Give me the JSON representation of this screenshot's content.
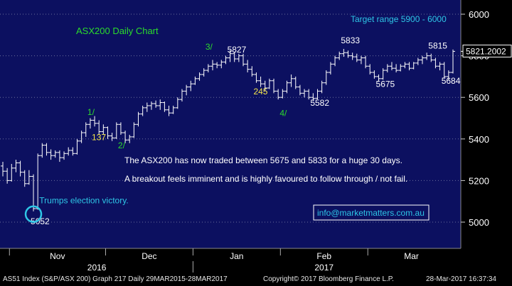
{
  "chart_data": {
    "type": "ohlc",
    "title": "ASX200 Daily Chart",
    "target_label": "Target range 5900 - 6000",
    "last_price_label": "5821.2002",
    "y_ticks": [
      5000,
      5200,
      5400,
      5600,
      5800,
      6000
    ],
    "ylim": [
      4880,
      6040
    ],
    "x_months": [
      "Nov",
      "Dec",
      "Jan",
      "Feb",
      "Mar"
    ],
    "x_years": [
      "2016",
      "2017"
    ],
    "colors": {
      "background": "#0c1060",
      "bars": "#ffffff",
      "green": "#2bdc2b",
      "yellow": "#f5e64a",
      "cyan": "#2ec6e6",
      "axis": "#000000"
    },
    "series": [
      {
        "date": "2016-10-28",
        "open": 5270,
        "high": 5290,
        "low": 5220,
        "close": 5245
      },
      {
        "date": "2016-10-31",
        "open": 5245,
        "high": 5260,
        "low": 5185,
        "close": 5200
      },
      {
        "date": "2016-11-01",
        "open": 5200,
        "high": 5280,
        "low": 5195,
        "close": 5260
      },
      {
        "date": "2016-11-02",
        "open": 5260,
        "high": 5300,
        "low": 5240,
        "close": 5285
      },
      {
        "date": "2016-11-03",
        "open": 5285,
        "high": 5295,
        "low": 5220,
        "close": 5240
      },
      {
        "date": "2016-11-04",
        "open": 5240,
        "high": 5250,
        "low": 5170,
        "close": 5185
      },
      {
        "date": "2016-11-07",
        "open": 5185,
        "high": 5250,
        "low": 5180,
        "close": 5220
      },
      {
        "date": "2016-11-08",
        "open": 5220,
        "high": 5230,
        "low": 5052,
        "close": 5065
      },
      {
        "date": "2016-11-09",
        "open": 5065,
        "high": 5330,
        "low": 5060,
        "close": 5320
      },
      {
        "date": "2016-11-10",
        "open": 5320,
        "high": 5380,
        "low": 5310,
        "close": 5370
      },
      {
        "date": "2016-11-11",
        "open": 5370,
        "high": 5380,
        "low": 5320,
        "close": 5335
      },
      {
        "date": "2016-11-14",
        "open": 5335,
        "high": 5350,
        "low": 5300,
        "close": 5320
      },
      {
        "date": "2016-11-15",
        "open": 5320,
        "high": 5345,
        "low": 5310,
        "close": 5335
      },
      {
        "date": "2016-11-16",
        "open": 5335,
        "high": 5345,
        "low": 5290,
        "close": 5310
      },
      {
        "date": "2016-11-17",
        "open": 5310,
        "high": 5340,
        "low": 5300,
        "close": 5330
      },
      {
        "date": "2016-11-18",
        "open": 5330,
        "high": 5360,
        "low": 5320,
        "close": 5345
      },
      {
        "date": "2016-11-21",
        "open": 5345,
        "high": 5360,
        "low": 5320,
        "close": 5330
      },
      {
        "date": "2016-11-22",
        "open": 5330,
        "high": 5400,
        "low": 5325,
        "close": 5390
      },
      {
        "date": "2016-11-23",
        "open": 5390,
        "high": 5440,
        "low": 5380,
        "close": 5430
      },
      {
        "date": "2016-11-24",
        "open": 5430,
        "high": 5480,
        "low": 5410,
        "close": 5470
      },
      {
        "date": "2016-11-25",
        "open": 5470,
        "high": 5500,
        "low": 5450,
        "close": 5490
      },
      {
        "date": "2016-11-28",
        "open": 5490,
        "high": 5510,
        "low": 5460,
        "close": 5475
      },
      {
        "date": "2016-11-29",
        "open": 5475,
        "high": 5490,
        "low": 5420,
        "close": 5435
      },
      {
        "date": "2016-11-30",
        "open": 5435,
        "high": 5470,
        "low": 5420,
        "close": 5455
      },
      {
        "date": "2016-12-01",
        "open": 5455,
        "high": 5460,
        "low": 5400,
        "close": 5415
      },
      {
        "date": "2016-12-02",
        "open": 5415,
        "high": 5430,
        "low": 5390,
        "close": 5405
      },
      {
        "date": "2016-12-05",
        "open": 5405,
        "high": 5480,
        "low": 5400,
        "close": 5470
      },
      {
        "date": "2016-12-06",
        "open": 5470,
        "high": 5480,
        "low": 5420,
        "close": 5430
      },
      {
        "date": "2016-12-07",
        "open": 5430,
        "high": 5440,
        "low": 5380,
        "close": 5395
      },
      {
        "date": "2016-12-08",
        "open": 5395,
        "high": 5420,
        "low": 5380,
        "close": 5410
      },
      {
        "date": "2016-12-09",
        "open": 5410,
        "high": 5480,
        "low": 5405,
        "close": 5470
      },
      {
        "date": "2016-12-12",
        "open": 5470,
        "high": 5530,
        "low": 5460,
        "close": 5520
      },
      {
        "date": "2016-12-13",
        "open": 5520,
        "high": 5560,
        "low": 5510,
        "close": 5550
      },
      {
        "date": "2016-12-14",
        "open": 5550,
        "high": 5575,
        "low": 5530,
        "close": 5560
      },
      {
        "date": "2016-12-15",
        "open": 5560,
        "high": 5580,
        "low": 5540,
        "close": 5570
      },
      {
        "date": "2016-12-16",
        "open": 5570,
        "high": 5585,
        "low": 5550,
        "close": 5560
      },
      {
        "date": "2016-12-19",
        "open": 5560,
        "high": 5590,
        "low": 5540,
        "close": 5575
      },
      {
        "date": "2016-12-20",
        "open": 5575,
        "high": 5580,
        "low": 5530,
        "close": 5540
      },
      {
        "date": "2016-12-21",
        "open": 5540,
        "high": 5560,
        "low": 5510,
        "close": 5525
      },
      {
        "date": "2016-12-22",
        "open": 5525,
        "high": 5560,
        "low": 5520,
        "close": 5550
      },
      {
        "date": "2016-12-23",
        "open": 5550,
        "high": 5600,
        "low": 5545,
        "close": 5590
      },
      {
        "date": "2016-12-28",
        "open": 5590,
        "high": 5640,
        "low": 5580,
        "close": 5630
      },
      {
        "date": "2016-12-29",
        "open": 5630,
        "high": 5660,
        "low": 5610,
        "close": 5650
      },
      {
        "date": "2016-12-30",
        "open": 5650,
        "high": 5680,
        "low": 5630,
        "close": 5665
      },
      {
        "date": "2017-01-03",
        "open": 5665,
        "high": 5700,
        "low": 5660,
        "close": 5690
      },
      {
        "date": "2017-01-04",
        "open": 5690,
        "high": 5720,
        "low": 5680,
        "close": 5710
      },
      {
        "date": "2017-01-05",
        "open": 5710,
        "high": 5740,
        "low": 5700,
        "close": 5730
      },
      {
        "date": "2017-01-06",
        "open": 5730,
        "high": 5760,
        "low": 5720,
        "close": 5750
      },
      {
        "date": "2017-01-09",
        "open": 5750,
        "high": 5780,
        "low": 5730,
        "close": 5760
      },
      {
        "date": "2017-01-10",
        "open": 5760,
        "high": 5770,
        "low": 5740,
        "close": 5755
      },
      {
        "date": "2017-01-11",
        "open": 5755,
        "high": 5780,
        "low": 5740,
        "close": 5770
      },
      {
        "date": "2017-01-12",
        "open": 5770,
        "high": 5800,
        "low": 5760,
        "close": 5790
      },
      {
        "date": "2017-01-13",
        "open": 5790,
        "high": 5827,
        "low": 5770,
        "close": 5810
      },
      {
        "date": "2017-01-16",
        "open": 5810,
        "high": 5820,
        "low": 5770,
        "close": 5785
      },
      {
        "date": "2017-01-17",
        "open": 5785,
        "high": 5810,
        "low": 5770,
        "close": 5800
      },
      {
        "date": "2017-01-18",
        "open": 5800,
        "high": 5810,
        "low": 5750,
        "close": 5760
      },
      {
        "date": "2017-01-19",
        "open": 5760,
        "high": 5780,
        "low": 5720,
        "close": 5735
      },
      {
        "date": "2017-01-20",
        "open": 5735,
        "high": 5750,
        "low": 5700,
        "close": 5710
      },
      {
        "date": "2017-01-23",
        "open": 5710,
        "high": 5720,
        "low": 5670,
        "close": 5680
      },
      {
        "date": "2017-01-24",
        "open": 5680,
        "high": 5700,
        "low": 5650,
        "close": 5665
      },
      {
        "date": "2017-01-25",
        "open": 5665,
        "high": 5680,
        "low": 5630,
        "close": 5645
      },
      {
        "date": "2017-01-27",
        "open": 5645,
        "high": 5690,
        "low": 5640,
        "close": 5680
      },
      {
        "date": "2017-01-30",
        "open": 5680,
        "high": 5690,
        "low": 5620,
        "close": 5630
      },
      {
        "date": "2017-01-31",
        "open": 5630,
        "high": 5640,
        "low": 5590,
        "close": 5600
      },
      {
        "date": "2017-02-01",
        "open": 5600,
        "high": 5640,
        "low": 5595,
        "close": 5630
      },
      {
        "date": "2017-02-02",
        "open": 5630,
        "high": 5680,
        "low": 5620,
        "close": 5670
      },
      {
        "date": "2017-02-03",
        "open": 5670,
        "high": 5710,
        "low": 5650,
        "close": 5690
      },
      {
        "date": "2017-02-06",
        "open": 5690,
        "high": 5700,
        "low": 5640,
        "close": 5650
      },
      {
        "date": "2017-02-07",
        "open": 5650,
        "high": 5660,
        "low": 5610,
        "close": 5620
      },
      {
        "date": "2017-02-08",
        "open": 5620,
        "high": 5640,
        "low": 5600,
        "close": 5630
      },
      {
        "date": "2017-02-09",
        "open": 5630,
        "high": 5640,
        "low": 5590,
        "close": 5600
      },
      {
        "date": "2017-02-10",
        "open": 5600,
        "high": 5620,
        "low": 5582,
        "close": 5595
      },
      {
        "date": "2017-02-13",
        "open": 5595,
        "high": 5640,
        "low": 5590,
        "close": 5630
      },
      {
        "date": "2017-02-14",
        "open": 5630,
        "high": 5680,
        "low": 5620,
        "close": 5670
      },
      {
        "date": "2017-02-15",
        "open": 5670,
        "high": 5730,
        "low": 5660,
        "close": 5720
      },
      {
        "date": "2017-02-16",
        "open": 5720,
        "high": 5770,
        "low": 5710,
        "close": 5760
      },
      {
        "date": "2017-02-17",
        "open": 5760,
        "high": 5800,
        "low": 5750,
        "close": 5790
      },
      {
        "date": "2017-02-20",
        "open": 5790,
        "high": 5820,
        "low": 5780,
        "close": 5810
      },
      {
        "date": "2017-02-21",
        "open": 5810,
        "high": 5833,
        "low": 5795,
        "close": 5815
      },
      {
        "date": "2017-02-22",
        "open": 5815,
        "high": 5825,
        "low": 5790,
        "close": 5800
      },
      {
        "date": "2017-02-23",
        "open": 5800,
        "high": 5815,
        "low": 5780,
        "close": 5795
      },
      {
        "date": "2017-02-24",
        "open": 5795,
        "high": 5810,
        "low": 5770,
        "close": 5780
      },
      {
        "date": "2017-02-27",
        "open": 5780,
        "high": 5800,
        "low": 5760,
        "close": 5790
      },
      {
        "date": "2017-02-28",
        "open": 5790,
        "high": 5800,
        "low": 5740,
        "close": 5750
      },
      {
        "date": "2017-03-01",
        "open": 5750,
        "high": 5760,
        "low": 5710,
        "close": 5720
      },
      {
        "date": "2017-03-02",
        "open": 5720,
        "high": 5730,
        "low": 5690,
        "close": 5700
      },
      {
        "date": "2017-03-03",
        "open": 5700,
        "high": 5710,
        "low": 5675,
        "close": 5690
      },
      {
        "date": "2017-03-06",
        "open": 5690,
        "high": 5740,
        "low": 5685,
        "close": 5730
      },
      {
        "date": "2017-03-07",
        "open": 5730,
        "high": 5760,
        "low": 5720,
        "close": 5750
      },
      {
        "date": "2017-03-08",
        "open": 5750,
        "high": 5770,
        "low": 5730,
        "close": 5740
      },
      {
        "date": "2017-03-09",
        "open": 5740,
        "high": 5760,
        "low": 5720,
        "close": 5730
      },
      {
        "date": "2017-03-10",
        "open": 5730,
        "high": 5760,
        "low": 5725,
        "close": 5750
      },
      {
        "date": "2017-03-13",
        "open": 5750,
        "high": 5770,
        "low": 5740,
        "close": 5760
      },
      {
        "date": "2017-03-14",
        "open": 5760,
        "high": 5770,
        "low": 5730,
        "close": 5740
      },
      {
        "date": "2017-03-15",
        "open": 5740,
        "high": 5770,
        "low": 5735,
        "close": 5765
      },
      {
        "date": "2017-03-16",
        "open": 5765,
        "high": 5790,
        "low": 5755,
        "close": 5780
      },
      {
        "date": "2017-03-17",
        "open": 5780,
        "high": 5800,
        "low": 5760,
        "close": 5790
      },
      {
        "date": "2017-03-20",
        "open": 5790,
        "high": 5815,
        "low": 5780,
        "close": 5800
      },
      {
        "date": "2017-03-21",
        "open": 5800,
        "high": 5810,
        "low": 5770,
        "close": 5780
      },
      {
        "date": "2017-03-22",
        "open": 5780,
        "high": 5790,
        "low": 5740,
        "close": 5750
      },
      {
        "date": "2017-03-23",
        "open": 5750,
        "high": 5770,
        "low": 5730,
        "close": 5760
      },
      {
        "date": "2017-03-24",
        "open": 5760,
        "high": 5770,
        "low": 5690,
        "close": 5700
      },
      {
        "date": "2017-03-27",
        "open": 5700,
        "high": 5730,
        "low": 5684,
        "close": 5720
      },
      {
        "date": "2017-03-28",
        "open": 5720,
        "high": 5830,
        "low": 5715,
        "close": 5821.2
      }
    ],
    "annotations": [
      {
        "date": "2016-11-25",
        "price": 5515,
        "text": "1/",
        "color": "green"
      },
      {
        "date": "2016-11-28",
        "price": 5395,
        "text": "137",
        "color": "yellow"
      },
      {
        "date": "2016-12-06",
        "price": 5355,
        "text": "2/",
        "color": "green"
      },
      {
        "date": "2017-01-06",
        "price": 5830,
        "text": "3/",
        "color": "green"
      },
      {
        "date": "2017-01-13",
        "price": 5815,
        "text": "5827",
        "color": "white"
      },
      {
        "date": "2017-01-23",
        "price": 5615,
        "text": "245",
        "color": "yellow"
      },
      {
        "date": "2017-02-01",
        "price": 5510,
        "text": "4/",
        "color": "green"
      },
      {
        "date": "2017-02-10",
        "price": 5560,
        "text": "5582",
        "color": "white"
      },
      {
        "date": "2017-02-21",
        "price": 5860,
        "text": "5833",
        "color": "white"
      },
      {
        "date": "2017-03-03",
        "price": 5650,
        "text": "5675",
        "color": "white"
      },
      {
        "date": "2017-03-21",
        "price": 5835,
        "text": "5815",
        "color": "white"
      },
      {
        "date": "2017-03-24",
        "price": 5665,
        "text": "5684",
        "color": "white"
      },
      {
        "date": "2016-11-08",
        "price": 4990,
        "text": "5052",
        "color": "white"
      },
      {
        "date": "2016-11-10",
        "price": 5090,
        "text": "Trumps election victory.",
        "color": "cyan"
      }
    ],
    "marker_circle": {
      "date": "2016-11-08",
      "price": 5052
    },
    "commentary": [
      "The ASX200 has now traded between 5675 and 5833 for a huge 30 days.",
      "A breakout feels imminent and is highly favoured to follow through / not fail."
    ],
    "email_box": "info@marketmatters.com.au"
  },
  "footer": {
    "left": "AS51 Index (S&P/ASX 200) Graph 217  Daily 29MAR2015-28MAR2017",
    "center": "Copyright© 2017 Bloomberg Finance L.P.",
    "right": "28-Mar-2017 16:37:34"
  }
}
